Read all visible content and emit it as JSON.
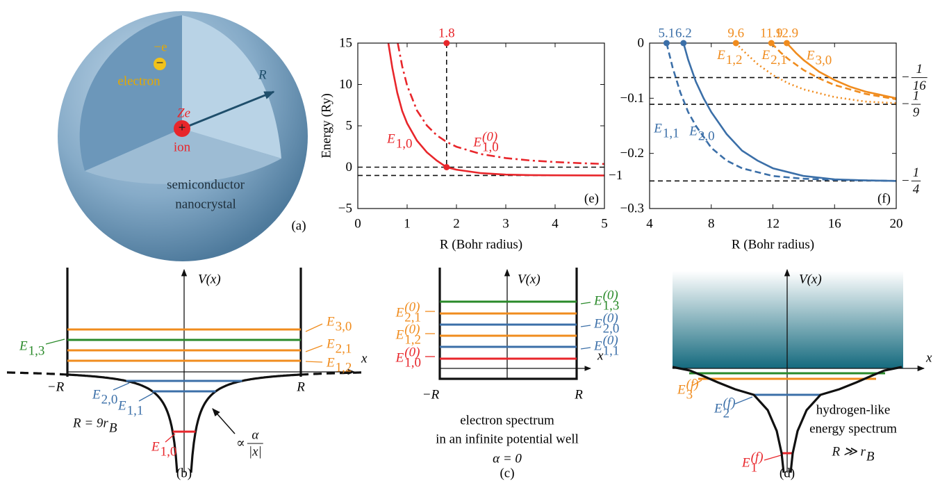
{
  "panel_a": {
    "electron_charge": "−e",
    "electron_sign": "−",
    "electron": "electron",
    "ion_charge": "Ze",
    "ion_sign": "+",
    "ion": "ion",
    "radius": "R",
    "material": [
      "semiconductor",
      "nanocrystal"
    ],
    "tag": "(a)"
  },
  "chart_data": [
    {
      "type": "line",
      "tag": "(e)",
      "x_label": "R (Bohr radius)",
      "y_label": "Energy (Ry)",
      "xlim": [
        0,
        5
      ],
      "ylim": [
        -5,
        15
      ],
      "xticks": [
        0,
        1,
        2,
        3,
        4,
        5
      ],
      "yticks": [
        {
          "value": -5,
          "label": "−5"
        },
        0,
        5,
        10,
        15
      ],
      "hlines": [
        {
          "value": 0
        },
        {
          "value": -1,
          "label": "−1"
        }
      ],
      "markers": [
        {
          "x": 1.8,
          "y": 15,
          "color": "#e8262b"
        },
        {
          "x": 1.8,
          "y": 0,
          "color": "#e8262b"
        }
      ],
      "series": [
        {
          "name": {
            "main": "E",
            "sub": "1,0"
          },
          "color": "#e8262b",
          "line_style": "solid",
          "x": [
            0.62,
            0.7,
            0.8,
            0.9,
            1.0,
            1.2,
            1.4,
            1.6,
            1.8,
            2.0,
            2.5,
            3.0,
            3.5,
            4.0,
            4.5,
            5.0
          ],
          "values": [
            15,
            12,
            9,
            6.8,
            5.3,
            3.2,
            1.8,
            0.8,
            0,
            -0.3,
            -0.72,
            -0.9,
            -0.96,
            -0.98,
            -0.99,
            -1
          ]
        },
        {
          "name": {
            "main": "E",
            "sub": "1,0",
            "sup": "(0)"
          },
          "color": "#e8262b",
          "line_style": "dashdot",
          "x": [
            0.81,
            0.9,
            1.0,
            1.2,
            1.4,
            1.6,
            1.8,
            2.0,
            2.5,
            3.0,
            3.5,
            4.0,
            4.5,
            5.0
          ],
          "values": [
            15,
            12.2,
            9.87,
            6.85,
            5.04,
            3.86,
            3.05,
            2.47,
            1.58,
            1.1,
            0.81,
            0.62,
            0.49,
            0.39
          ]
        }
      ]
    },
    {
      "type": "line",
      "tag": "(f)",
      "x_label": "R (Bohr radius)",
      "xlim": [
        4,
        20
      ],
      "ylim": [
        -0.3,
        0
      ],
      "xticks": [
        4,
        8,
        12,
        16,
        20
      ],
      "yticks": [
        {
          "value": -0.3,
          "label": "−0.3"
        },
        {
          "value": -0.2,
          "label": "−0.2"
        },
        {
          "value": -0.1,
          "label": "−0.1"
        },
        0
      ],
      "hlines": [
        {
          "value": -0.0625,
          "label": {
            "sign": "−",
            "num": "1",
            "den": "16"
          }
        },
        {
          "value": -0.111,
          "label": {
            "sign": "−",
            "num": "1",
            "den": "9"
          }
        },
        {
          "value": -0.25,
          "label": {
            "sign": "−",
            "num": "1",
            "den": "4"
          }
        }
      ],
      "markers": [
        {
          "x": 5.1,
          "y": 0,
          "color": "#3b6fa8"
        },
        {
          "x": 6.2,
          "y": 0,
          "color": "#3b6fa8"
        },
        {
          "x": 9.6,
          "y": 0,
          "color": "#f08c1e"
        },
        {
          "x": 11.9,
          "y": 0,
          "color": "#f08c1e"
        },
        {
          "x": 12.9,
          "y": 0,
          "color": "#f08c1e"
        }
      ],
      "series": [
        {
          "name": {
            "main": "E",
            "sub": "1,1"
          },
          "color": "#3b6fa8",
          "line_style": "dashed",
          "x": [
            5.1,
            5.5,
            6,
            6.5,
            7,
            8,
            9,
            10,
            12,
            14,
            16,
            18,
            20
          ],
          "values": [
            0,
            -0.045,
            -0.09,
            -0.125,
            -0.15,
            -0.19,
            -0.213,
            -0.227,
            -0.241,
            -0.246,
            -0.248,
            -0.249,
            -0.25
          ]
        },
        {
          "name": {
            "main": "E",
            "sub": "2,0"
          },
          "color": "#3b6fa8",
          "line_style": "solid",
          "x": [
            6.2,
            6.5,
            7,
            7.5,
            8,
            9,
            10,
            11,
            12,
            14,
            16,
            18,
            20
          ],
          "values": [
            0,
            -0.03,
            -0.07,
            -0.1,
            -0.125,
            -0.165,
            -0.195,
            -0.213,
            -0.227,
            -0.241,
            -0.247,
            -0.249,
            -0.25
          ]
        },
        {
          "name": {
            "main": "E",
            "sub": "1,2"
          },
          "color": "#f08c1e",
          "line_style": "dotted",
          "x": [
            9.6,
            10,
            11,
            12,
            13,
            14,
            16,
            18,
            20
          ],
          "values": [
            0,
            -0.012,
            -0.038,
            -0.058,
            -0.073,
            -0.084,
            -0.098,
            -0.106,
            -0.109
          ]
        },
        {
          "name": {
            "main": "E",
            "sub": "2,1"
          },
          "color": "#f08c1e",
          "line_style": "dashed",
          "x": [
            11.9,
            12.5,
            13,
            14,
            15,
            16,
            18,
            20
          ],
          "values": [
            0,
            -0.017,
            -0.029,
            -0.049,
            -0.064,
            -0.076,
            -0.092,
            -0.102
          ]
        },
        {
          "name": {
            "main": "E",
            "sub": "3,0"
          },
          "color": "#f08c1e",
          "line_style": "solid",
          "x": [
            12.9,
            13.5,
            14,
            15,
            16,
            17,
            18,
            20
          ],
          "values": [
            0,
            -0.018,
            -0.031,
            -0.052,
            -0.067,
            -0.079,
            -0.088,
            -0.1
          ]
        }
      ]
    }
  ],
  "panel_b": {
    "axis_y": "V(x)",
    "axis_x": "x",
    "left_wall": "−R",
    "right_wall": "R",
    "levels": [
      {
        "label": {
          "main": "E",
          "sub": "3,0"
        },
        "color": "#f08c1e"
      },
      {
        "label": {
          "main": "E",
          "sub": "1,3"
        },
        "color": "#2a8a2a"
      },
      {
        "label": {
          "main": "E",
          "sub": "2,1"
        },
        "color": "#f08c1e"
      },
      {
        "label": {
          "main": "E",
          "sub": "1,2"
        },
        "color": "#f08c1e"
      },
      {
        "label": {
          "main": "E",
          "sub": "2,0"
        },
        "color": "#3b6fa8"
      },
      {
        "label": {
          "main": "E",
          "sub": "1,1"
        },
        "color": "#3b6fa8"
      },
      {
        "label": {
          "main": "E",
          "sub": "1,0"
        },
        "color": "#e8262b"
      }
    ],
    "radius_note": {
      "main": "R = 9r",
      "sub": "B"
    },
    "potential_note": {
      "sign": "∝",
      "num": "α",
      "den": "|x|"
    },
    "tag": "(b)"
  },
  "panel_c": {
    "axis_y": "V(x)",
    "axis_x": "x",
    "left_wall": "−R",
    "right_wall": "R",
    "levels": [
      {
        "label": {
          "main": "E",
          "sub": "1,3",
          "sup": "(0)"
        },
        "color": "#2a8a2a"
      },
      {
        "label": {
          "main": "E",
          "sub": "2,1",
          "sup": "(0)"
        },
        "color": "#f08c1e"
      },
      {
        "label": {
          "main": "E",
          "sub": "2,0",
          "sup": "(0)"
        },
        "color": "#3b6fa8"
      },
      {
        "label": {
          "main": "E",
          "sub": "1,2",
          "sup": "(0)"
        },
        "color": "#f08c1e"
      },
      {
        "label": {
          "main": "E",
          "sub": "1,1",
          "sup": "(0)"
        },
        "color": "#3b6fa8"
      },
      {
        "label": {
          "main": "E",
          "sub": "1,0",
          "sup": "(0)"
        },
        "color": "#e8262b"
      }
    ],
    "caption": [
      "electron spectrum",
      "in an infinite potential well"
    ],
    "condition": "α = 0",
    "tag": "(c)"
  },
  "panel_d": {
    "axis_y": "V(x)",
    "axis_x": "x",
    "levels": [
      {
        "label": {
          "main": "E",
          "sub": "3",
          "sup": "(f)"
        },
        "color": "#f08c1e"
      },
      {
        "label": {
          "main": "E",
          "sub": "2",
          "sup": "(f)"
        },
        "color": "#3b6fa8"
      },
      {
        "label": {
          "main": "E",
          "sub": "1",
          "sup": "(f)"
        },
        "color": "#e8262b"
      }
    ],
    "description": [
      "hydrogen-like",
      "energy spectrum"
    ],
    "condition": {
      "main": "R ≫ r",
      "sub": "B"
    },
    "tag": "(d)"
  }
}
